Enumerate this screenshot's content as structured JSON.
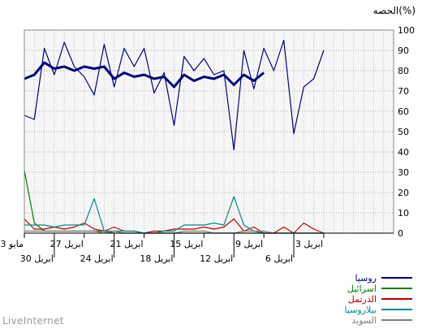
{
  "chart_data": {
    "type": "line",
    "ylabel": "الحصه(%)",
    "ylim": [
      0,
      100
    ],
    "yticks": [
      0,
      10,
      20,
      30,
      40,
      50,
      60,
      70,
      80,
      90,
      100
    ],
    "grid": true,
    "legend_position": "bottom-right",
    "x_count": 38,
    "xticks_top": [
      {
        "label": "3 مايو",
        "i": 0
      },
      {
        "label": "27 ابريل",
        "i": 6
      },
      {
        "label": "21 ابريل",
        "i": 12
      },
      {
        "label": "15 ابريل",
        "i": 18
      },
      {
        "label": "9 ابريل",
        "i": 24
      },
      {
        "label": "3 ابريل",
        "i": 30
      }
    ],
    "xticks_bottom": [
      {
        "label": "30 ابريل",
        "i": 3
      },
      {
        "label": "24 ابريل",
        "i": 9
      },
      {
        "label": "18 ابريل",
        "i": 15
      },
      {
        "label": "12 ابريل",
        "i": 21
      },
      {
        "label": "6 ابريل",
        "i": 27
      }
    ],
    "series": [
      {
        "name": "روسيا",
        "color": "#000080",
        "values": [
          58,
          56,
          91,
          78,
          94,
          82,
          77,
          68,
          93,
          72,
          91,
          82,
          91,
          69,
          79,
          53,
          87,
          80,
          86,
          78,
          80,
          41,
          90,
          71,
          91,
          80,
          95,
          49,
          72,
          76,
          90,
          null,
          null,
          null,
          null,
          null,
          null,
          null
        ]
      },
      {
        "name": "روسيا (trend)",
        "color": "#000080",
        "bold": true,
        "values": [
          76,
          78,
          84,
          81,
          82,
          80,
          82,
          81,
          82,
          76,
          79,
          77,
          78,
          76,
          77,
          72,
          78,
          75,
          77,
          76,
          78,
          73,
          78,
          75,
          79,
          null,
          null,
          null,
          null,
          null,
          null,
          null,
          null,
          null,
          null,
          null,
          null,
          null
        ]
      },
      {
        "name": "اسرائيل",
        "color": "#008000",
        "values": [
          31,
          5,
          1,
          1,
          1,
          1,
          1,
          1,
          1,
          0,
          0,
          0,
          0,
          0,
          0,
          0,
          0,
          0,
          0,
          0,
          0,
          0,
          0,
          0,
          0,
          0,
          0,
          0,
          0,
          0,
          0,
          null,
          null,
          null,
          null,
          null,
          null,
          null
        ]
      },
      {
        "name": "الدرتمل",
        "color": "#c00000",
        "values": [
          7,
          2,
          2,
          3,
          2,
          3,
          5,
          2,
          1,
          3,
          1,
          1,
          0,
          1,
          1,
          2,
          2,
          2,
          3,
          2,
          3,
          7,
          1,
          3,
          0,
          0,
          3,
          0,
          5,
          2,
          0,
          null,
          null,
          null,
          null,
          null,
          null,
          null
        ]
      },
      {
        "name": "بيلاروسيا",
        "color": "#008b8b",
        "values": [
          4,
          4,
          4,
          3,
          4,
          4,
          4,
          17,
          1,
          1,
          1,
          1,
          0,
          0,
          1,
          1,
          4,
          4,
          4,
          5,
          4,
          18,
          4,
          1,
          0,
          0,
          0,
          0,
          0,
          0,
          0,
          null,
          null,
          null,
          null,
          null,
          null,
          null
        ]
      },
      {
        "name": "السويد",
        "color": "#808080",
        "values": [
          1,
          1,
          1,
          1,
          1,
          1,
          1,
          1,
          0,
          1,
          0,
          0,
          0,
          0,
          0,
          0,
          1,
          1,
          1,
          0,
          0,
          0,
          1,
          1,
          1,
          0,
          0,
          0,
          0,
          0,
          0,
          null,
          null,
          null,
          null,
          null,
          null,
          null
        ]
      }
    ],
    "legend": [
      {
        "name": "روسيا",
        "color": "#000080"
      },
      {
        "name": "اسرائيل",
        "color": "#008000"
      },
      {
        "name": "الدرتمل",
        "color": "#c00000"
      },
      {
        "name": "بيلاروسيا",
        "color": "#008b8b"
      },
      {
        "name": "السويد",
        "color": "#808080"
      }
    ]
  },
  "brand": "LiveInternet"
}
